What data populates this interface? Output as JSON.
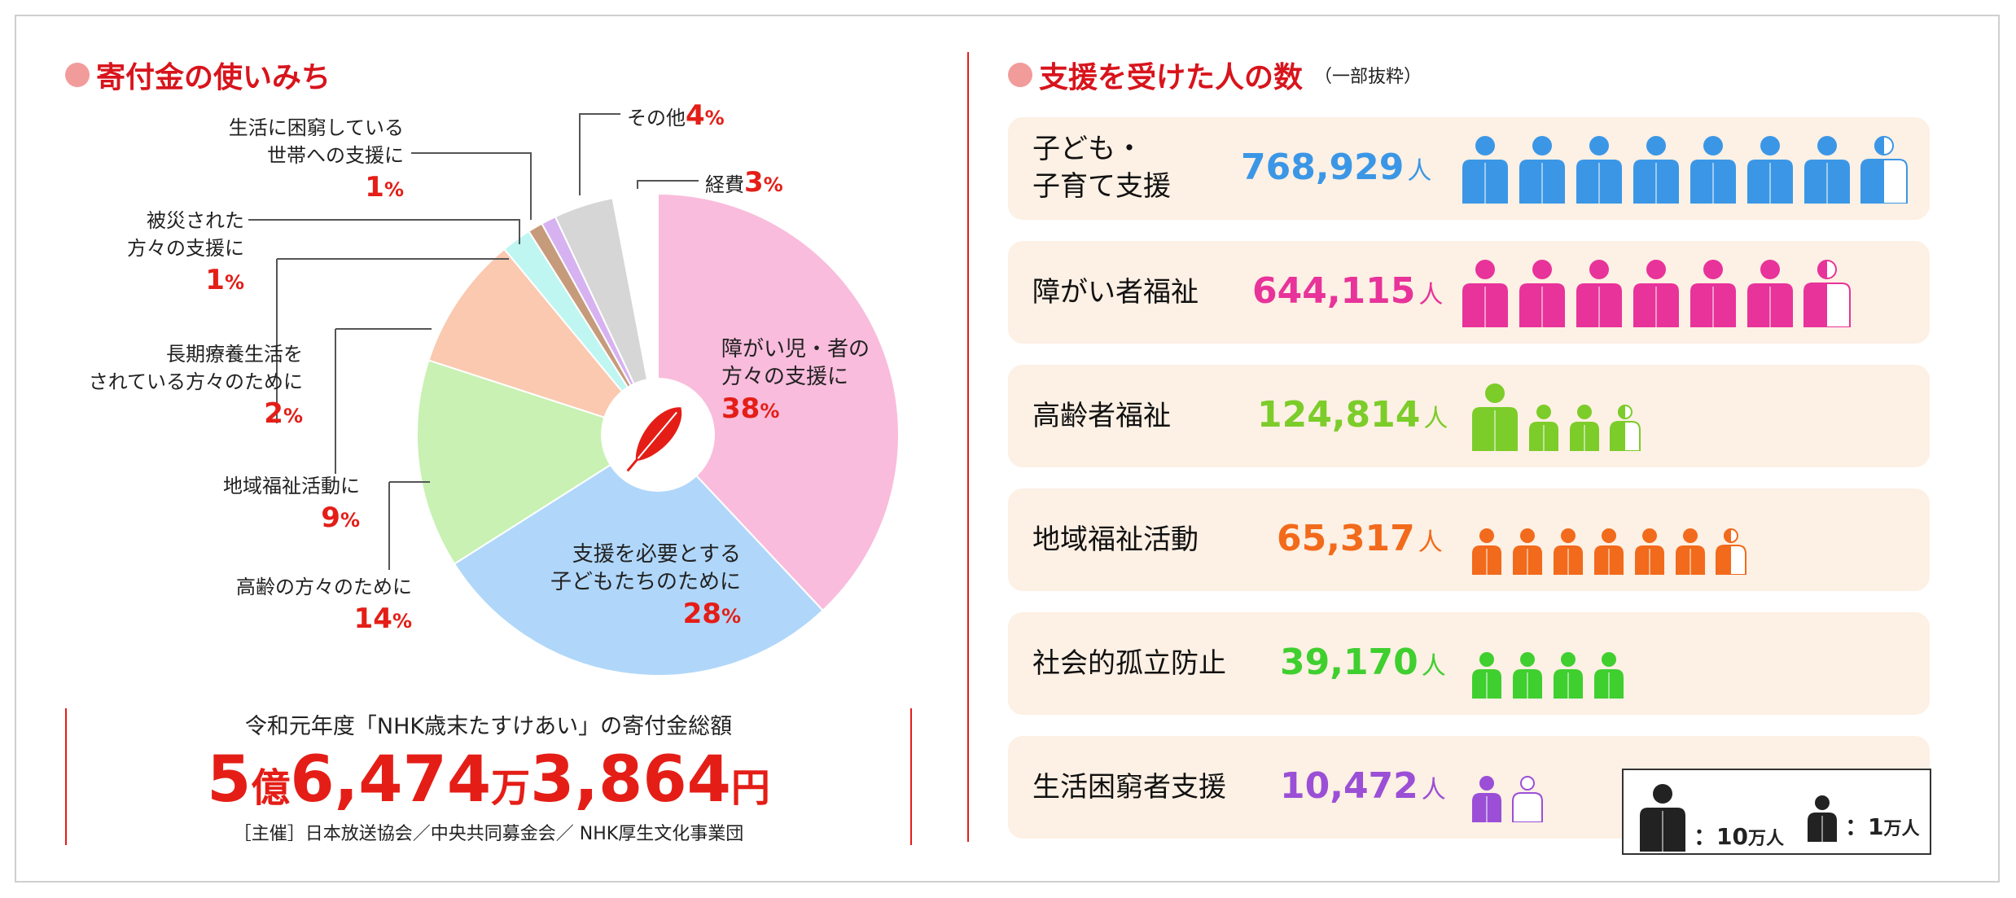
{
  "left": {
    "title": "寄付金の使いみち"
  },
  "chart_data": [
    {
      "type": "pie",
      "title": "寄付金の使いみち",
      "slices": [
        {
          "label": "障がい児・者の方々の支援に",
          "value": 38,
          "color": "#f9bcdc"
        },
        {
          "label": "支援を必要とする子どもたちのために",
          "value": 28,
          "color": "#b0d7fa"
        },
        {
          "label": "高齢の方々のために",
          "value": 14,
          "color": "#c8f1b3"
        },
        {
          "label": "地域福祉活動に",
          "value": 9,
          "color": "#fac9b0"
        },
        {
          "label": "長期療養生活をされている方々のために",
          "value": 2,
          "color": "#bff6f1"
        },
        {
          "label": "被災された方々の支援に",
          "value": 1,
          "color": "#c69b7c"
        },
        {
          "label": "生活に困窮している世帯への支援に",
          "value": 1,
          "color": "#d7b2f0"
        },
        {
          "label": "その他",
          "value": 4,
          "color": "#d6d6d6"
        },
        {
          "label": "経費",
          "value": 3,
          "color": "#ffffff"
        }
      ],
      "unit": "%"
    },
    {
      "type": "bar",
      "title": "支援を受けた人の数",
      "subtitle": "（一部抜粋）",
      "categories": [
        "子ども・子育て支援",
        "障がい者福祉",
        "高齢者福祉",
        "地域福祉活動",
        "社会的孤立防止",
        "生活困窮者支援"
      ],
      "values": [
        768929,
        644115,
        124814,
        65317,
        39170,
        10472
      ],
      "unit": "人"
    }
  ],
  "callouts": {
    "seikatsu": {
      "line1": "生活に困窮している",
      "line2": "世帯への支援に",
      "pct": "1"
    },
    "hisai": {
      "line1": "被災された",
      "line2": "方々の支援に",
      "pct": "1"
    },
    "chouki": {
      "line1": "長期療養生活を",
      "line2": "されている方々のために",
      "pct": "2"
    },
    "chiiki": {
      "line1": "地域福祉活動に",
      "pct": "9"
    },
    "koureii": {
      "line1": "高齢の方々のために",
      "pct": "14"
    },
    "sonota": {
      "line1": "その他",
      "pct": "4"
    },
    "keihi": {
      "line1": "経費",
      "pct": "3"
    },
    "shougai": {
      "line1": "障がい児・者の",
      "line2": "方々の支援に",
      "pct": "38"
    },
    "kodomo": {
      "line1": "支援を必要とする",
      "line2": "子どもたちのために",
      "pct": "28"
    },
    "pct_unit": "%"
  },
  "total": {
    "label": "令和元年度「NHK歳末たすけあい」の寄付金総額",
    "n1": "5",
    "u1": "億",
    "n2": "6,474",
    "u2": "万",
    "n3": "3,864",
    "u3": "円",
    "footer": "［主催］日本放送協会／中央共同募金会／ NHK厚生文化事業団"
  },
  "right": {
    "title": "支援を受けた人の数",
    "subtitle": "（一部抜粋）",
    "rows": [
      {
        "label1": "子ども・",
        "label2": "子育て支援",
        "count": "768,929",
        "unit": "人",
        "color": "#3b97e6",
        "big": 7,
        "small": 0,
        "partial": "big"
      },
      {
        "label1": "障がい者福祉",
        "count": "644,115",
        "unit": "人",
        "color": "#e8339a",
        "big": 6,
        "small": 0,
        "partial": "big"
      },
      {
        "label1": "高齢者福祉",
        "count": "124,814",
        "unit": "人",
        "color": "#7ccc2a",
        "big": 1,
        "small": 2,
        "partial": "small"
      },
      {
        "label1": "地域福祉活動",
        "count": "65,317",
        "unit": "人",
        "color": "#f26a1b",
        "big": 0,
        "small": 6,
        "partial": "small"
      },
      {
        "label1": "社会的孤立防止",
        "count": "39,170",
        "unit": "人",
        "color": "#3fcf2f",
        "big": 0,
        "small": 4,
        "partial": "none"
      },
      {
        "label1": "生活困窮者支援",
        "count": "10,472",
        "unit": "人",
        "color": "#9b4fd6",
        "big": 0,
        "small": 1,
        "partial": "outline"
      }
    ]
  },
  "legend": {
    "big_value": "10",
    "big_unit": "万人",
    "small_value": "1",
    "small_unit": "万人",
    "sep": "："
  }
}
